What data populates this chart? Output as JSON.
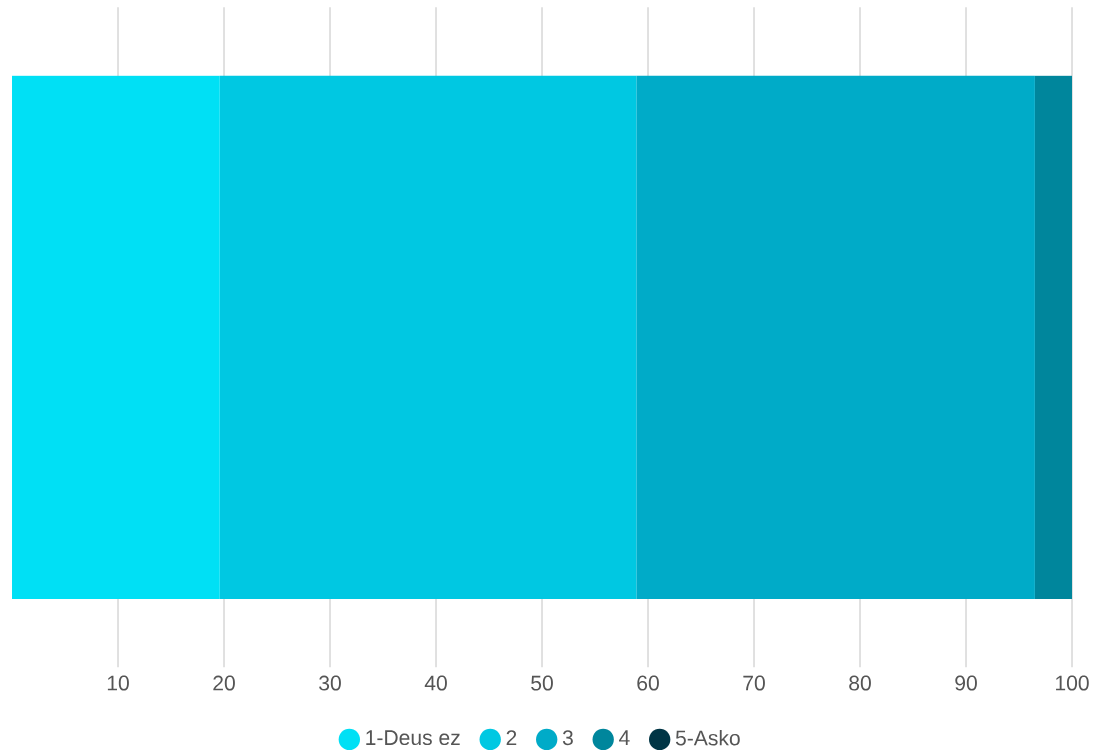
{
  "chart_data": {
    "type": "bar",
    "orientation": "horizontal",
    "stacked": true,
    "categories": [
      null
    ],
    "series": [
      {
        "name": "1-Deus ez",
        "color": "#00e0f5",
        "values": [
          19.6
        ]
      },
      {
        "name": "2",
        "color": "#00c8e2",
        "values": [
          39.3
        ]
      },
      {
        "name": "3",
        "color": "#00abc8",
        "values": [
          37.6
        ]
      },
      {
        "name": "4",
        "color": "#00869c",
        "values": [
          3.5
        ]
      },
      {
        "name": "5-Asko",
        "color": "#003545",
        "values": [
          null
        ]
      }
    ],
    "xlim": [
      0,
      100
    ],
    "xticks": [
      10,
      20,
      30,
      40,
      50,
      60,
      70,
      80,
      90,
      100
    ],
    "grid": "x",
    "legend": "bottom"
  }
}
